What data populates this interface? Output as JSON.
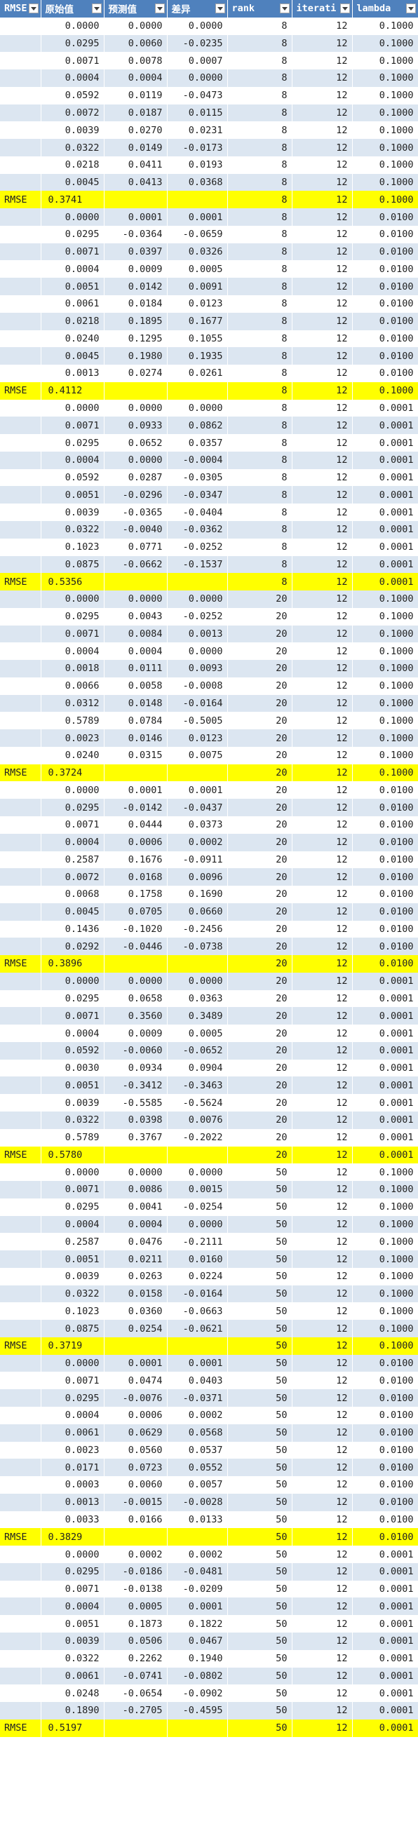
{
  "headers": [
    "RMSE",
    "原始值",
    "预测值",
    "差异",
    "rank",
    "iterati",
    "lambda"
  ],
  "rows": [
    [
      "",
      "0.0000",
      "0.0000",
      "0.0000",
      "8",
      "12",
      "0.1000"
    ],
    [
      "",
      "0.0295",
      "0.0060",
      "-0.0235",
      "8",
      "12",
      "0.1000"
    ],
    [
      "",
      "0.0071",
      "0.0078",
      "0.0007",
      "8",
      "12",
      "0.1000"
    ],
    [
      "",
      "0.0004",
      "0.0004",
      "0.0000",
      "8",
      "12",
      "0.1000"
    ],
    [
      "",
      "0.0592",
      "0.0119",
      "-0.0473",
      "8",
      "12",
      "0.1000"
    ],
    [
      "",
      "0.0072",
      "0.0187",
      "0.0115",
      "8",
      "12",
      "0.1000"
    ],
    [
      "",
      "0.0039",
      "0.0270",
      "0.0231",
      "8",
      "12",
      "0.1000"
    ],
    [
      "",
      "0.0322",
      "0.0149",
      "-0.0173",
      "8",
      "12",
      "0.1000"
    ],
    [
      "",
      "0.0218",
      "0.0411",
      "0.0193",
      "8",
      "12",
      "0.1000"
    ],
    [
      "",
      "0.0045",
      "0.0413",
      "0.0368",
      "8",
      "12",
      "0.1000"
    ],
    [
      "RMSE",
      "0.3741",
      "",
      "",
      "8",
      "12",
      "0.1000"
    ],
    [
      "",
      "0.0000",
      "0.0001",
      "0.0001",
      "8",
      "12",
      "0.0100"
    ],
    [
      "",
      "0.0295",
      "-0.0364",
      "-0.0659",
      "8",
      "12",
      "0.0100"
    ],
    [
      "",
      "0.0071",
      "0.0397",
      "0.0326",
      "8",
      "12",
      "0.0100"
    ],
    [
      "",
      "0.0004",
      "0.0009",
      "0.0005",
      "8",
      "12",
      "0.0100"
    ],
    [
      "",
      "0.0051",
      "0.0142",
      "0.0091",
      "8",
      "12",
      "0.0100"
    ],
    [
      "",
      "0.0061",
      "0.0184",
      "0.0123",
      "8",
      "12",
      "0.0100"
    ],
    [
      "",
      "0.0218",
      "0.1895",
      "0.1677",
      "8",
      "12",
      "0.0100"
    ],
    [
      "",
      "0.0240",
      "0.1295",
      "0.1055",
      "8",
      "12",
      "0.0100"
    ],
    [
      "",
      "0.0045",
      "0.1980",
      "0.1935",
      "8",
      "12",
      "0.0100"
    ],
    [
      "",
      "0.0013",
      "0.0274",
      "0.0261",
      "8",
      "12",
      "0.0100"
    ],
    [
      "RMSE",
      "0.4112",
      "",
      "",
      "8",
      "12",
      "0.1000"
    ],
    [
      "",
      "0.0000",
      "0.0000",
      "0.0000",
      "8",
      "12",
      "0.0001"
    ],
    [
      "",
      "0.0071",
      "0.0933",
      "0.0862",
      "8",
      "12",
      "0.0001"
    ],
    [
      "",
      "0.0295",
      "0.0652",
      "0.0357",
      "8",
      "12",
      "0.0001"
    ],
    [
      "",
      "0.0004",
      "0.0000",
      "-0.0004",
      "8",
      "12",
      "0.0001"
    ],
    [
      "",
      "0.0592",
      "0.0287",
      "-0.0305",
      "8",
      "12",
      "0.0001"
    ],
    [
      "",
      "0.0051",
      "-0.0296",
      "-0.0347",
      "8",
      "12",
      "0.0001"
    ],
    [
      "",
      "0.0039",
      "-0.0365",
      "-0.0404",
      "8",
      "12",
      "0.0001"
    ],
    [
      "",
      "0.0322",
      "-0.0040",
      "-0.0362",
      "8",
      "12",
      "0.0001"
    ],
    [
      "",
      "0.1023",
      "0.0771",
      "-0.0252",
      "8",
      "12",
      "0.0001"
    ],
    [
      "",
      "0.0875",
      "-0.0662",
      "-0.1537",
      "8",
      "12",
      "0.0001"
    ],
    [
      "RMSE",
      "0.5356",
      "",
      "",
      "8",
      "12",
      "0.0001"
    ],
    [
      "",
      "0.0000",
      "0.0000",
      "0.0000",
      "20",
      "12",
      "0.1000"
    ],
    [
      "",
      "0.0295",
      "0.0043",
      "-0.0252",
      "20",
      "12",
      "0.1000"
    ],
    [
      "",
      "0.0071",
      "0.0084",
      "0.0013",
      "20",
      "12",
      "0.1000"
    ],
    [
      "",
      "0.0004",
      "0.0004",
      "0.0000",
      "20",
      "12",
      "0.1000"
    ],
    [
      "",
      "0.0018",
      "0.0111",
      "0.0093",
      "20",
      "12",
      "0.1000"
    ],
    [
      "",
      "0.0066",
      "0.0058",
      "-0.0008",
      "20",
      "12",
      "0.1000"
    ],
    [
      "",
      "0.0312",
      "0.0148",
      "-0.0164",
      "20",
      "12",
      "0.1000"
    ],
    [
      "",
      "0.5789",
      "0.0784",
      "-0.5005",
      "20",
      "12",
      "0.1000"
    ],
    [
      "",
      "0.0023",
      "0.0146",
      "0.0123",
      "20",
      "12",
      "0.1000"
    ],
    [
      "",
      "0.0240",
      "0.0315",
      "0.0075",
      "20",
      "12",
      "0.1000"
    ],
    [
      "RMSE",
      "0.3724",
      "",
      "",
      "20",
      "12",
      "0.1000"
    ],
    [
      "",
      "0.0000",
      "0.0001",
      "0.0001",
      "20",
      "12",
      "0.0100"
    ],
    [
      "",
      "0.0295",
      "-0.0142",
      "-0.0437",
      "20",
      "12",
      "0.0100"
    ],
    [
      "",
      "0.0071",
      "0.0444",
      "0.0373",
      "20",
      "12",
      "0.0100"
    ],
    [
      "",
      "0.0004",
      "0.0006",
      "0.0002",
      "20",
      "12",
      "0.0100"
    ],
    [
      "",
      "0.2587",
      "0.1676",
      "-0.0911",
      "20",
      "12",
      "0.0100"
    ],
    [
      "",
      "0.0072",
      "0.0168",
      "0.0096",
      "20",
      "12",
      "0.0100"
    ],
    [
      "",
      "0.0068",
      "0.1758",
      "0.1690",
      "20",
      "12",
      "0.0100"
    ],
    [
      "",
      "0.0045",
      "0.0705",
      "0.0660",
      "20",
      "12",
      "0.0100"
    ],
    [
      "",
      "0.1436",
      "-0.1020",
      "-0.2456",
      "20",
      "12",
      "0.0100"
    ],
    [
      "",
      "0.0292",
      "-0.0446",
      "-0.0738",
      "20",
      "12",
      "0.0100"
    ],
    [
      "RMSE",
      "0.3896",
      "",
      "",
      "20",
      "12",
      "0.0100"
    ],
    [
      "",
      "0.0000",
      "0.0000",
      "0.0000",
      "20",
      "12",
      "0.0001"
    ],
    [
      "",
      "0.0295",
      "0.0658",
      "0.0363",
      "20",
      "12",
      "0.0001"
    ],
    [
      "",
      "0.0071",
      "0.3560",
      "0.3489",
      "20",
      "12",
      "0.0001"
    ],
    [
      "",
      "0.0004",
      "0.0009",
      "0.0005",
      "20",
      "12",
      "0.0001"
    ],
    [
      "",
      "0.0592",
      "-0.0060",
      "-0.0652",
      "20",
      "12",
      "0.0001"
    ],
    [
      "",
      "0.0030",
      "0.0934",
      "0.0904",
      "20",
      "12",
      "0.0001"
    ],
    [
      "",
      "0.0051",
      "-0.3412",
      "-0.3463",
      "20",
      "12",
      "0.0001"
    ],
    [
      "",
      "0.0039",
      "-0.5585",
      "-0.5624",
      "20",
      "12",
      "0.0001"
    ],
    [
      "",
      "0.0322",
      "0.0398",
      "0.0076",
      "20",
      "12",
      "0.0001"
    ],
    [
      "",
      "0.5789",
      "0.3767",
      "-0.2022",
      "20",
      "12",
      "0.0001"
    ],
    [
      "RMSE",
      "0.5780",
      "",
      "",
      "20",
      "12",
      "0.0001"
    ],
    [
      "",
      "0.0000",
      "0.0000",
      "0.0000",
      "50",
      "12",
      "0.1000"
    ],
    [
      "",
      "0.0071",
      "0.0086",
      "0.0015",
      "50",
      "12",
      "0.1000"
    ],
    [
      "",
      "0.0295",
      "0.0041",
      "-0.0254",
      "50",
      "12",
      "0.1000"
    ],
    [
      "",
      "0.0004",
      "0.0004",
      "0.0000",
      "50",
      "12",
      "0.1000"
    ],
    [
      "",
      "0.2587",
      "0.0476",
      "-0.2111",
      "50",
      "12",
      "0.1000"
    ],
    [
      "",
      "0.0051",
      "0.0211",
      "0.0160",
      "50",
      "12",
      "0.1000"
    ],
    [
      "",
      "0.0039",
      "0.0263",
      "0.0224",
      "50",
      "12",
      "0.1000"
    ],
    [
      "",
      "0.0322",
      "0.0158",
      "-0.0164",
      "50",
      "12",
      "0.1000"
    ],
    [
      "",
      "0.1023",
      "0.0360",
      "-0.0663",
      "50",
      "12",
      "0.1000"
    ],
    [
      "",
      "0.0875",
      "0.0254",
      "-0.0621",
      "50",
      "12",
      "0.1000"
    ],
    [
      "RMSE",
      "0.3719",
      "",
      "",
      "50",
      "12",
      "0.1000"
    ],
    [
      "",
      "0.0000",
      "0.0001",
      "0.0001",
      "50",
      "12",
      "0.0100"
    ],
    [
      "",
      "0.0071",
      "0.0474",
      "0.0403",
      "50",
      "12",
      "0.0100"
    ],
    [
      "",
      "0.0295",
      "-0.0076",
      "-0.0371",
      "50",
      "12",
      "0.0100"
    ],
    [
      "",
      "0.0004",
      "0.0006",
      "0.0002",
      "50",
      "12",
      "0.0100"
    ],
    [
      "",
      "0.0061",
      "0.0629",
      "0.0568",
      "50",
      "12",
      "0.0100"
    ],
    [
      "",
      "0.0023",
      "0.0560",
      "0.0537",
      "50",
      "12",
      "0.0100"
    ],
    [
      "",
      "0.0171",
      "0.0723",
      "0.0552",
      "50",
      "12",
      "0.0100"
    ],
    [
      "",
      "0.0003",
      "0.0060",
      "0.0057",
      "50",
      "12",
      "0.0100"
    ],
    [
      "",
      "0.0013",
      "-0.0015",
      "-0.0028",
      "50",
      "12",
      "0.0100"
    ],
    [
      "",
      "0.0033",
      "0.0166",
      "0.0133",
      "50",
      "12",
      "0.0100"
    ],
    [
      "RMSE",
      "0.3829",
      "",
      "",
      "50",
      "12",
      "0.0100"
    ],
    [
      "",
      "0.0000",
      "0.0002",
      "0.0002",
      "50",
      "12",
      "0.0001"
    ],
    [
      "",
      "0.0295",
      "-0.0186",
      "-0.0481",
      "50",
      "12",
      "0.0001"
    ],
    [
      "",
      "0.0071",
      "-0.0138",
      "-0.0209",
      "50",
      "12",
      "0.0001"
    ],
    [
      "",
      "0.0004",
      "0.0005",
      "0.0001",
      "50",
      "12",
      "0.0001"
    ],
    [
      "",
      "0.0051",
      "0.1873",
      "0.1822",
      "50",
      "12",
      "0.0001"
    ],
    [
      "",
      "0.0039",
      "0.0506",
      "0.0467",
      "50",
      "12",
      "0.0001"
    ],
    [
      "",
      "0.0322",
      "0.2262",
      "0.1940",
      "50",
      "12",
      "0.0001"
    ],
    [
      "",
      "0.0061",
      "-0.0741",
      "-0.0802",
      "50",
      "12",
      "0.0001"
    ],
    [
      "",
      "0.0248",
      "-0.0654",
      "-0.0902",
      "50",
      "12",
      "0.0001"
    ],
    [
      "",
      "0.1890",
      "-0.2705",
      "-0.4595",
      "50",
      "12",
      "0.0001"
    ],
    [
      "RMSE",
      "0.5197",
      "",
      "",
      "50",
      "12",
      "0.0001"
    ]
  ],
  "colors": {
    "header": "#4f81bd",
    "stripe": "#dce6f1",
    "rmse_highlight": "#ffff00"
  },
  "icons": {
    "header_dropdown": "filter-dropdown-icon"
  }
}
